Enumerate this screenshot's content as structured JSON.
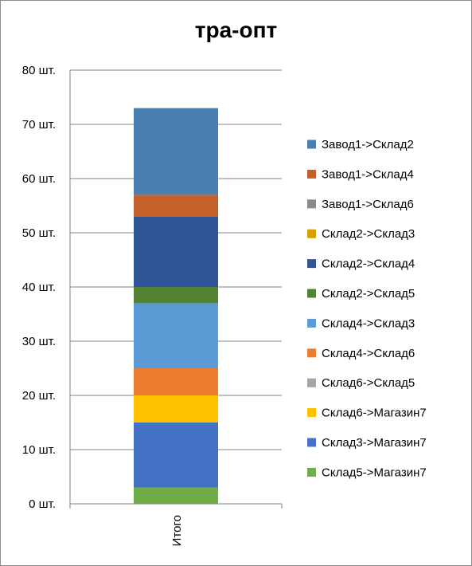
{
  "chart_data": {
    "type": "bar",
    "stacked": true,
    "title": "тра-опт",
    "categories": [
      "Итого"
    ],
    "y_tick_labels": [
      "0 шт.",
      "10 шт.",
      "20 шт.",
      "30 шт.",
      "40 шт.",
      "50 шт.",
      "60 шт.",
      "70 шт.",
      "80 шт."
    ],
    "ylim": [
      0,
      80
    ],
    "grid": true,
    "legend_position": "right",
    "series": [
      {
        "name": "Завод1->Склад2",
        "values": [
          16
        ],
        "color": "#4a7fb2"
      },
      {
        "name": "Завод1->Склад4",
        "values": [
          4
        ],
        "color": "#c4612a"
      },
      {
        "name": "Завод1->Склад6",
        "values": [
          0
        ],
        "color": "#8a8a8a"
      },
      {
        "name": "Склад2->Склад3",
        "values": [
          0
        ],
        "color": "#d4a000"
      },
      {
        "name": "Склад2->Склад4",
        "values": [
          13
        ],
        "color": "#2f5597"
      },
      {
        "name": "Склад2->Склад5",
        "values": [
          3
        ],
        "color": "#548235"
      },
      {
        "name": "Склад4->Склад3",
        "values": [
          12
        ],
        "color": "#5b9bd5"
      },
      {
        "name": "Склад4->Склад6",
        "values": [
          5
        ],
        "color": "#ed7d31"
      },
      {
        "name": "Склад6->Склад5",
        "values": [
          0
        ],
        "color": "#a5a5a5"
      },
      {
        "name": "Склад6->Магазин7",
        "values": [
          5
        ],
        "color": "#ffc000"
      },
      {
        "name": "Склад3->Магазин7",
        "values": [
          12
        ],
        "color": "#4472c4"
      },
      {
        "name": "Склад5->Магазин7",
        "values": [
          3
        ],
        "color": "#70ad47"
      }
    ]
  }
}
